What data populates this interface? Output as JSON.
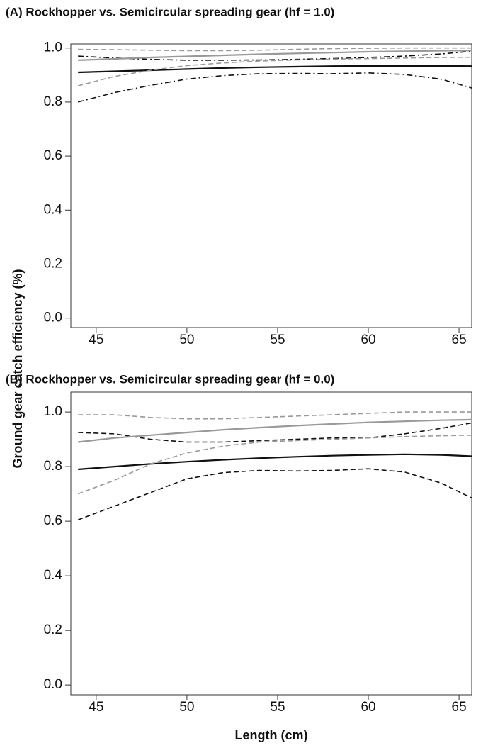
{
  "chart_data": [
    {
      "type": "line",
      "title": "(A)  Rockhopper vs. Semicircular spreading gear (hf = 1.0)",
      "x": [
        44,
        46,
        48,
        50,
        52,
        54,
        56,
        58,
        60,
        62,
        64,
        65.7
      ],
      "xlim": [
        43.6,
        65.7
      ],
      "xticks": [
        45,
        50,
        55,
        60,
        65
      ],
      "ylim": [
        -0.035,
        1.015
      ],
      "yticks": [
        {
          "value": 0,
          "label": "0.0"
        },
        0.2,
        0.4,
        0.6,
        0.8,
        {
          "value": 1,
          "label": "1.0"
        }
      ],
      "series": [
        {
          "color": "#111111",
          "dash": "solid",
          "values": [
            0.91,
            0.914,
            0.918,
            0.922,
            0.926,
            0.929,
            0.931,
            0.933,
            0.934,
            0.934,
            0.934,
            0.933
          ]
        },
        {
          "color": "#111111",
          "dash": "dashdot",
          "values": [
            0.8,
            0.835,
            0.862,
            0.885,
            0.898,
            0.905,
            0.906,
            0.905,
            0.908,
            0.902,
            0.885,
            0.852
          ]
        },
        {
          "color": "#111111",
          "dash": "dashdot",
          "values": [
            0.97,
            0.963,
            0.958,
            0.955,
            0.955,
            0.956,
            0.958,
            0.961,
            0.965,
            0.97,
            0.978,
            0.988
          ]
        },
        {
          "color": "#999999",
          "dash": "solid",
          "values": [
            0.955,
            0.96,
            0.965,
            0.969,
            0.973,
            0.977,
            0.98,
            0.983,
            0.986,
            0.988,
            0.99,
            0.991
          ]
        },
        {
          "color": "#999999",
          "dash": "dashed",
          "values": [
            0.86,
            0.895,
            0.918,
            0.935,
            0.945,
            0.952,
            0.956,
            0.959,
            0.961,
            0.963,
            0.965,
            0.966
          ]
        },
        {
          "color": "#999999",
          "dash": "dashed",
          "values": [
            0.995,
            0.994,
            0.992,
            0.99,
            0.99,
            0.992,
            0.995,
            0.998,
            0.999,
            1.0,
            1.0,
            1.0
          ]
        }
      ]
    },
    {
      "type": "line",
      "title": "(B)  Rockhopper vs. Semicircular spreading gear (hf = 0.0)",
      "x": [
        44,
        46,
        48,
        50,
        52,
        54,
        56,
        58,
        60,
        62,
        64,
        65.7
      ],
      "xlim": [
        43.6,
        65.7
      ],
      "xticks": [
        45,
        50,
        55,
        60,
        65
      ],
      "ylim": [
        -0.036,
        1.073
      ],
      "yticks": [
        {
          "value": 0,
          "label": "0.0"
        },
        0.2,
        0.4,
        0.6,
        0.8,
        {
          "value": 1,
          "label": "1.0"
        }
      ],
      "series": [
        {
          "color": "#111111",
          "dash": "solid",
          "values": [
            0.79,
            0.8,
            0.81,
            0.818,
            0.825,
            0.831,
            0.836,
            0.84,
            0.843,
            0.845,
            0.843,
            0.838
          ]
        },
        {
          "color": "#111111",
          "dash": "dashed",
          "values": [
            0.605,
            0.655,
            0.705,
            0.755,
            0.778,
            0.786,
            0.784,
            0.786,
            0.792,
            0.78,
            0.74,
            0.685
          ]
        },
        {
          "color": "#111111",
          "dash": "dashed",
          "values": [
            0.925,
            0.92,
            0.9,
            0.89,
            0.89,
            0.895,
            0.9,
            0.905,
            0.905,
            0.92,
            0.94,
            0.96
          ]
        },
        {
          "color": "#999999",
          "dash": "solid",
          "values": [
            0.89,
            0.905,
            0.915,
            0.925,
            0.935,
            0.943,
            0.95,
            0.956,
            0.962,
            0.966,
            0.97,
            0.972
          ]
        },
        {
          "color": "#999999",
          "dash": "dashed",
          "values": [
            0.7,
            0.75,
            0.81,
            0.85,
            0.875,
            0.89,
            0.895,
            0.9,
            0.905,
            0.91,
            0.913,
            0.915
          ]
        },
        {
          "color": "#999999",
          "dash": "dashed",
          "values": [
            0.99,
            0.99,
            0.98,
            0.975,
            0.975,
            0.98,
            0.985,
            0.99,
            0.995,
            1.0,
            1.0,
            1.0
          ]
        }
      ]
    }
  ],
  "y_label": "Ground gear catch efficiency (%)",
  "x_label": "Length (cm)"
}
